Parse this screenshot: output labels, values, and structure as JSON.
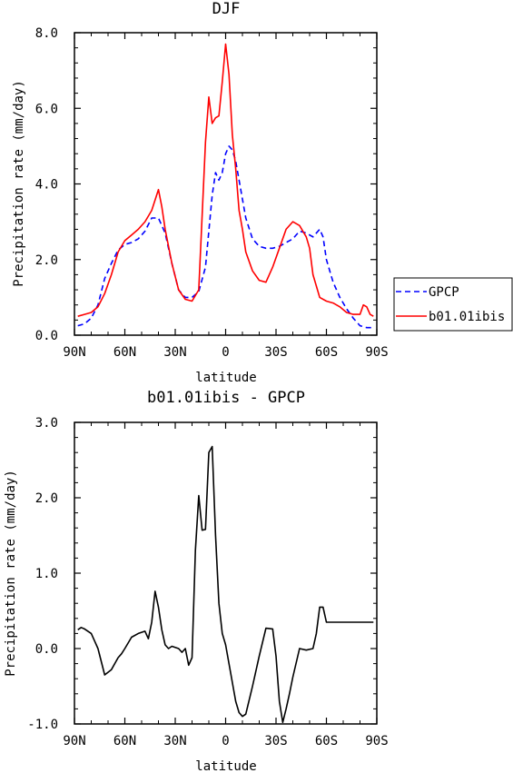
{
  "chart_data": [
    {
      "type": "line",
      "title": "DJF",
      "xlabel": "latitude",
      "ylabel": "Precipitation rate (mm/day)",
      "xlim": [
        -90,
        90
      ],
      "ylim": [
        0,
        8
      ],
      "x_ticks": [
        -90,
        -60,
        -30,
        0,
        30,
        60,
        90
      ],
      "x_tick_labels": [
        "90N",
        "60N",
        "30N",
        "0",
        "30S",
        "60S",
        "90S"
      ],
      "y_ticks": [
        0,
        2,
        4,
        6,
        8
      ],
      "y_tick_labels": [
        "0.0",
        "2.0",
        "4.0",
        "6.0",
        "8.0"
      ],
      "legend_position": "right",
      "series": [
        {
          "name": "GPCP",
          "color": "#0000ff",
          "dash": "dashed",
          "x": [
            -88,
            -84,
            -80,
            -76,
            -72,
            -68,
            -64,
            -60,
            -56,
            -52,
            -48,
            -44,
            -40,
            -36,
            -32,
            -28,
            -24,
            -20,
            -16,
            -12,
            -8,
            -6,
            -4,
            -2,
            0,
            2,
            4,
            6,
            8,
            10,
            12,
            16,
            20,
            24,
            28,
            32,
            36,
            40,
            44,
            48,
            52,
            56,
            58,
            60,
            64,
            68,
            72,
            76,
            80,
            84,
            88
          ],
          "y": [
            0.25,
            0.3,
            0.45,
            0.8,
            1.5,
            1.9,
            2.25,
            2.4,
            2.45,
            2.55,
            2.75,
            3.1,
            3.1,
            2.7,
            1.9,
            1.2,
            1.0,
            1.0,
            1.15,
            1.8,
            3.7,
            4.3,
            4.1,
            4.3,
            4.8,
            5.0,
            4.9,
            4.6,
            4.1,
            3.6,
            3.1,
            2.55,
            2.35,
            2.3,
            2.3,
            2.35,
            2.45,
            2.55,
            2.75,
            2.7,
            2.6,
            2.8,
            2.6,
            2.0,
            1.4,
            1.0,
            0.7,
            0.45,
            0.25,
            0.2,
            0.2
          ]
        },
        {
          "name": "b01.01ibis",
          "color": "#ff0000",
          "dash": "solid",
          "x": [
            -88,
            -84,
            -80,
            -76,
            -72,
            -68,
            -64,
            -60,
            -56,
            -52,
            -48,
            -44,
            -40,
            -38,
            -36,
            -32,
            -28,
            -24,
            -20,
            -16,
            -12,
            -10,
            -8,
            -6,
            -4,
            -2,
            0,
            2,
            4,
            6,
            8,
            10,
            12,
            16,
            20,
            24,
            28,
            32,
            36,
            40,
            44,
            48,
            50,
            52,
            56,
            60,
            64,
            68,
            72,
            76,
            80,
            82,
            84,
            86,
            88
          ],
          "y": [
            0.5,
            0.55,
            0.6,
            0.75,
            1.1,
            1.6,
            2.2,
            2.5,
            2.65,
            2.8,
            3.0,
            3.3,
            3.85,
            3.4,
            2.8,
            1.9,
            1.2,
            0.95,
            0.9,
            1.2,
            5.1,
            6.3,
            5.6,
            5.75,
            5.8,
            6.7,
            7.7,
            6.9,
            5.3,
            4.4,
            3.3,
            2.8,
            2.2,
            1.7,
            1.45,
            1.4,
            1.8,
            2.3,
            2.8,
            3.0,
            2.9,
            2.6,
            2.3,
            1.6,
            1.0,
            0.9,
            0.85,
            0.75,
            0.6,
            0.55,
            0.55,
            0.8,
            0.75,
            0.55,
            0.5
          ]
        }
      ]
    },
    {
      "type": "line",
      "title": "b01.01ibis - GPCP",
      "xlabel": "latitude",
      "ylabel": "Precipitation rate (mm/day)",
      "xlim": [
        -90,
        90
      ],
      "ylim": [
        -1,
        3
      ],
      "x_ticks": [
        -90,
        -60,
        -30,
        0,
        30,
        60,
        90
      ],
      "x_tick_labels": [
        "90N",
        "60N",
        "30N",
        "0",
        "30S",
        "60S",
        "90S"
      ],
      "y_ticks": [
        -1,
        0,
        1,
        2,
        3
      ],
      "y_tick_labels": [
        "-1.0",
        "0.0",
        "1.0",
        "2.0",
        "3.0"
      ],
      "series": [
        {
          "color": "#000000",
          "dash": "solid",
          "x": [
            -88,
            -86,
            -84,
            -80,
            -78,
            -76,
            -72,
            -68,
            -64,
            -62,
            -60,
            -56,
            -52,
            -48,
            -46,
            -44,
            -42,
            -40,
            -38,
            -36,
            -34,
            -32,
            -28,
            -26,
            -24,
            -22,
            -20,
            -18,
            -16,
            -14,
            -12,
            -10,
            -8,
            -6,
            -4,
            -2,
            0,
            2,
            4,
            6,
            8,
            10,
            12,
            16,
            20,
            24,
            28,
            30,
            32,
            34,
            36,
            38,
            40,
            44,
            48,
            52,
            54,
            56,
            58,
            60,
            62,
            64,
            66,
            68,
            72,
            74,
            76,
            80,
            84,
            86,
            88
          ],
          "y": [
            0.25,
            0.28,
            0.26,
            0.2,
            0.1,
            0.0,
            -0.35,
            -0.28,
            -0.12,
            -0.07,
            0.0,
            0.15,
            0.2,
            0.23,
            0.13,
            0.35,
            0.76,
            0.55,
            0.25,
            0.05,
            0.0,
            0.03,
            0.0,
            -0.05,
            0.0,
            -0.22,
            -0.12,
            1.3,
            2.03,
            1.57,
            1.58,
            2.6,
            2.68,
            1.5,
            0.6,
            0.2,
            0.05,
            -0.2,
            -0.45,
            -0.7,
            -0.85,
            -0.9,
            -0.87,
            -0.5,
            -0.1,
            0.27,
            0.26,
            -0.1,
            -0.7,
            -0.98,
            -0.8,
            -0.6,
            -0.38,
            0.0,
            -0.02,
            0.0,
            0.2,
            0.55,
            0.55,
            0.35,
            0.35,
            0.35,
            0.35,
            0.35,
            0.35,
            0.35,
            0.35,
            0.35,
            0.35,
            0.35,
            0.35
          ]
        }
      ]
    }
  ]
}
